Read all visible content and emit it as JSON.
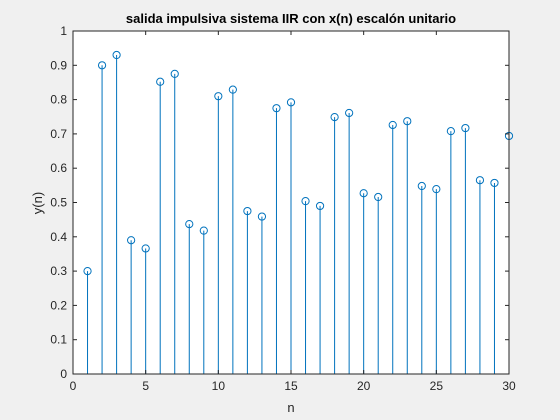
{
  "chart_data": {
    "type": "stem",
    "title": "salida impulsiva sistema IIR con x(n) escalón unitario",
    "xlabel": "n",
    "ylabel": "y(n)",
    "xlim": [
      0,
      30
    ],
    "ylim": [
      0,
      1
    ],
    "xticks": [
      "0",
      "5",
      "10",
      "15",
      "20",
      "25",
      "30"
    ],
    "yticks": [
      "0",
      "0.1",
      "0.2",
      "0.3",
      "0.4",
      "0.5",
      "0.6",
      "0.7",
      "0.8",
      "0.9",
      "1"
    ],
    "grid": false,
    "series": [
      {
        "color": "#0072bd",
        "marker": "circle-open",
        "x": [
          1,
          2,
          3,
          4,
          5,
          6,
          7,
          8,
          9,
          10,
          11,
          12,
          13,
          14,
          15,
          16,
          17,
          18,
          19,
          20,
          21,
          22,
          23,
          24,
          25,
          26,
          27,
          28,
          29,
          30
        ],
        "values": [
          0.3,
          0.9,
          0.93,
          0.39,
          0.366,
          0.852,
          0.875,
          0.437,
          0.418,
          0.81,
          0.829,
          0.475,
          0.459,
          0.775,
          0.792,
          0.504,
          0.49,
          0.749,
          0.761,
          0.527,
          0.516,
          0.726,
          0.737,
          0.548,
          0.539,
          0.708,
          0.717,
          0.565,
          0.557,
          0.694
        ]
      }
    ]
  }
}
